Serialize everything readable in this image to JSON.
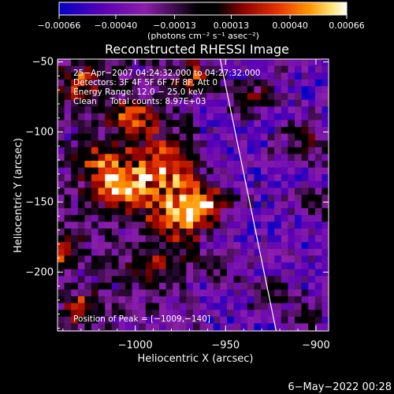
{
  "chart_data": {
    "type": "heatmap",
    "title": "Reconstructed RHESSI Image",
    "xlabel": "Heliocentric X (arcsec)",
    "ylabel": "Heliocentric Y (arcsec)",
    "xlim": [
      -1043,
      -893
    ],
    "ylim": [
      -242,
      -48
    ],
    "x_ticks": [
      -1000,
      -950,
      -900
    ],
    "x_tick_labels": [
      "−1000",
      "−950",
      "−900"
    ],
    "y_ticks": [
      -50,
      -100,
      -150,
      -200
    ],
    "y_tick_labels": [
      "−50",
      "−100",
      "−150",
      "−200"
    ],
    "colorbar": {
      "range": [
        -0.00066,
        0.00066
      ],
      "ticks": [
        -0.00066,
        -0.0004,
        -0.00013,
        0.00013,
        0.0004,
        0.00066
      ],
      "tick_labels": [
        "−0.00066",
        "−0.00040",
        "−0.00013",
        "0.00013",
        "0.00040",
        "0.00066"
      ],
      "unit_label": "(photons cm⁻² s⁻¹ asec⁻²)",
      "colormap": [
        "#0000c8",
        "#5a00b4",
        "#8c1eaa",
        "#000000",
        "#8c0000",
        "#e63200",
        "#ff9600",
        "#ffe678",
        "#ffffff"
      ]
    },
    "info_lines": [
      "25−Apr−2007 04:24:32.000 to 04:27:32.000",
      "Detectors: 3F 4F 5F 6F 7F 8F, Att 0",
      "Energy Range: 12.0 − 25.0 keV",
      "Clean     Total counts: 8.97E+03"
    ],
    "peak_label": "Position of Peak = [−1009,−140]",
    "peak_position": [
      -1009,
      -140
    ],
    "limb_line": [
      [
        -953,
        -48
      ],
      [
        -922,
        -242
      ]
    ],
    "grid": false
  },
  "footer": {
    "timestamp": "6−May−2022 00:28"
  }
}
